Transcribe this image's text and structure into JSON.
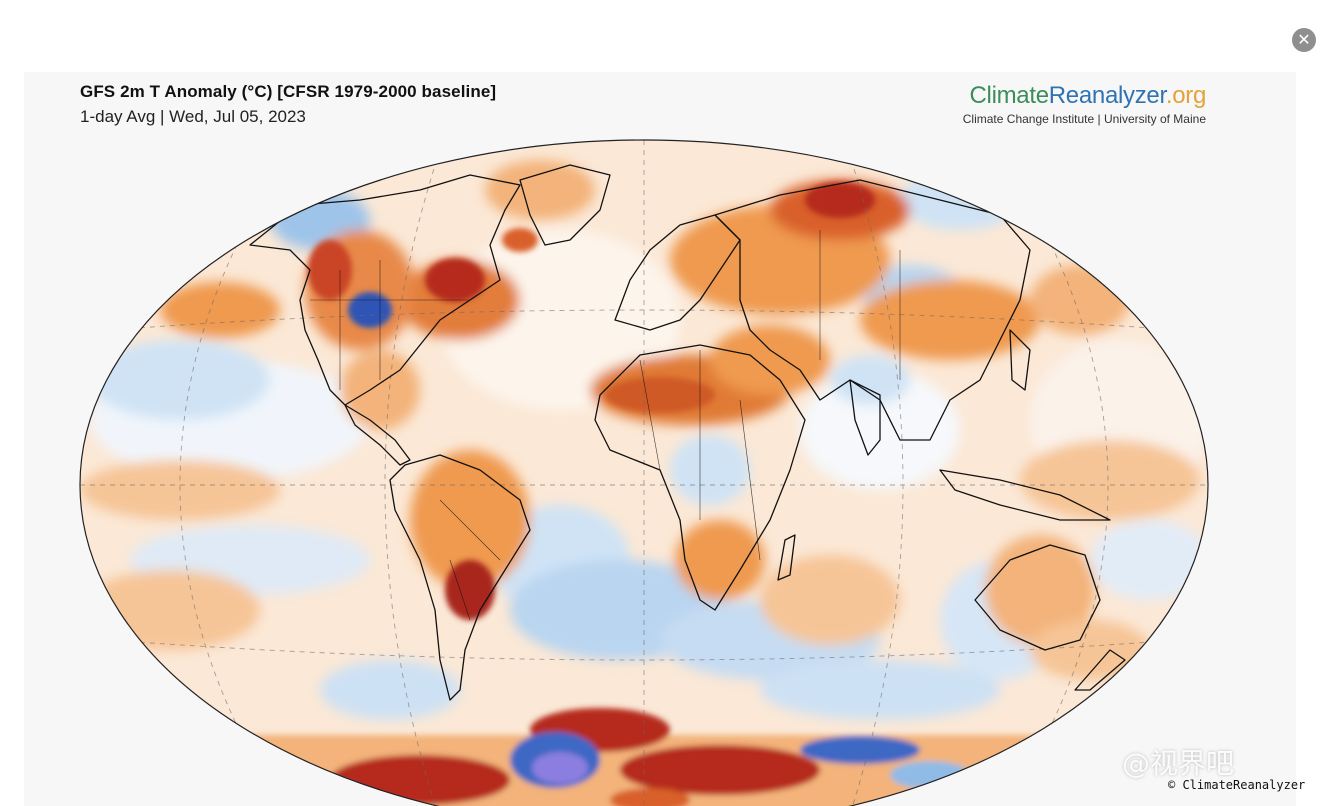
{
  "header": {
    "title": "GFS 2m T Anomaly (°C) [CFSR 1979-2000 baseline]",
    "subtitle": "1-day Avg | Wed, Jul 05, 2023"
  },
  "brand": {
    "name_part1": "Climate",
    "name_part2": "Reanalyzer",
    "name_part3": ".org",
    "sub": "Climate Change Institute | University of Maine"
  },
  "colors": {
    "warm_light": "#f7d4b0",
    "warm": "#ef9a4f",
    "warm_strong": "#d9602a",
    "hot": "#b52a1e",
    "cool_light": "#cfe3f5",
    "cool": "#8fbbe6",
    "cold": "#3d68c4",
    "very_cold": "#8c7ee0"
  },
  "close": {
    "icon": "close-icon",
    "glyph": "✕"
  },
  "watermark": {
    "text": "@视界吧"
  },
  "credit": {
    "text": "© ClimateReanalyzer"
  }
}
